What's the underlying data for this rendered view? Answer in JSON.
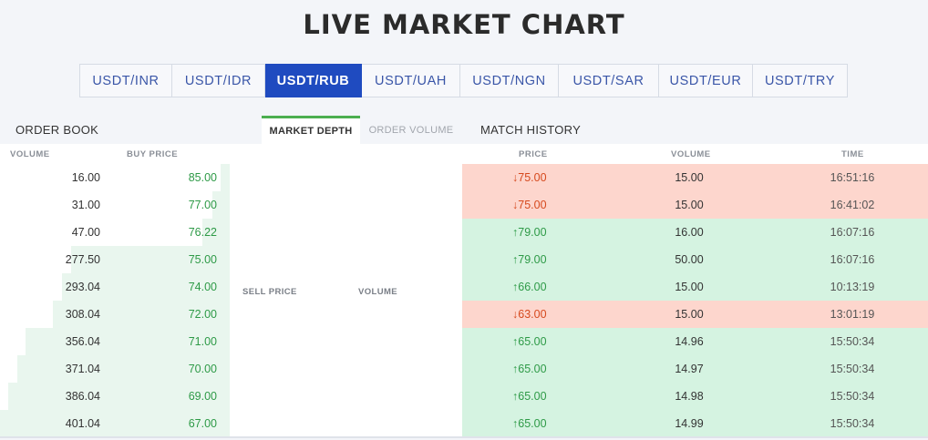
{
  "title": "LIVE MARKET CHART",
  "pairs": [
    "USDT/INR",
    "USDT/IDR",
    "USDT/RUB",
    "USDT/UAH",
    "USDT/NGN",
    "USDT/SAR",
    "USDT/EUR",
    "USDT/TRY"
  ],
  "active_pair": "USDT/RUB",
  "tabs": {
    "order_book": "ORDER BOOK",
    "market_depth": "MARKET DEPTH",
    "order_volume": "ORDER VOLUME",
    "match_history": "MATCH HISTORY"
  },
  "order_book": {
    "headers": {
      "volume": "VOLUME",
      "buy_price": "BUY PRICE"
    },
    "rows": [
      {
        "volume": "16.00",
        "price": "85.00"
      },
      {
        "volume": "31.00",
        "price": "77.00"
      },
      {
        "volume": "47.00",
        "price": "76.22"
      },
      {
        "volume": "277.50",
        "price": "75.00"
      },
      {
        "volume": "293.04",
        "price": "74.00"
      },
      {
        "volume": "308.04",
        "price": "72.00"
      },
      {
        "volume": "356.04",
        "price": "71.00"
      },
      {
        "volume": "371.04",
        "price": "70.00"
      },
      {
        "volume": "386.04",
        "price": "69.00"
      },
      {
        "volume": "401.04",
        "price": "67.00"
      }
    ]
  },
  "market_depth": {
    "sell_price": "SELL PRICE",
    "volume": "VOLUME"
  },
  "match_history": {
    "headers": {
      "price": "PRICE",
      "volume": "VOLUME",
      "time": "TIME"
    },
    "rows": [
      {
        "dir": "down",
        "price": "75.00",
        "volume": "15.00",
        "time": "16:51:16"
      },
      {
        "dir": "down",
        "price": "75.00",
        "volume": "15.00",
        "time": "16:41:02"
      },
      {
        "dir": "up",
        "price": "79.00",
        "volume": "16.00",
        "time": "16:07:16"
      },
      {
        "dir": "up",
        "price": "79.00",
        "volume": "50.00",
        "time": "16:07:16"
      },
      {
        "dir": "up",
        "price": "66.00",
        "volume": "15.00",
        "time": "10:13:19"
      },
      {
        "dir": "down",
        "price": "63.00",
        "volume": "15.00",
        "time": "13:01:19"
      },
      {
        "dir": "up",
        "price": "65.00",
        "volume": "14.96",
        "time": "15:50:34"
      },
      {
        "dir": "up",
        "price": "65.00",
        "volume": "14.97",
        "time": "15:50:34"
      },
      {
        "dir": "up",
        "price": "65.00",
        "volume": "14.98",
        "time": "15:50:34"
      },
      {
        "dir": "up",
        "price": "65.00",
        "volume": "14.99",
        "time": "15:50:34"
      }
    ]
  },
  "colors": {
    "accent": "#1f4bc0",
    "tab_indicator": "#4caf50",
    "up_text": "#2e9a47",
    "down_text": "#d64a1e",
    "up_bg": "#d5f3e1",
    "down_bg": "#fdd6cd",
    "depth_fill": "#e9f6ee"
  },
  "icons": {
    "up": "arrow-up-icon",
    "down": "arrow-down-icon"
  }
}
